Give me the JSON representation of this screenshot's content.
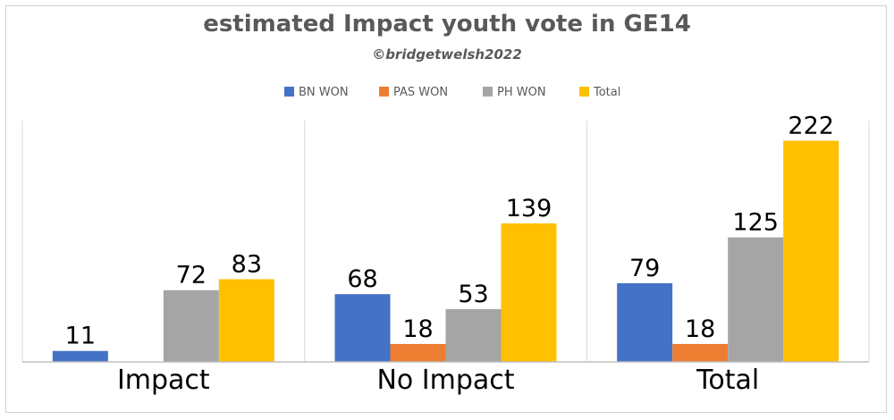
{
  "chart_data": {
    "type": "bar",
    "title": "estimated Impact youth vote in GE14",
    "subtitle": "©bridgetwelsh2022",
    "categories": [
      "Impact",
      "No Impact",
      "Total"
    ],
    "series": [
      {
        "name": "BN WON",
        "values": [
          11,
          68,
          79
        ],
        "color": "#4472C4"
      },
      {
        "name": "PAS WON",
        "values": [
          null,
          18,
          18
        ],
        "color": "#ED7D31"
      },
      {
        "name": "PH WON",
        "values": [
          72,
          53,
          125
        ],
        "color": "#A5A5A5"
      },
      {
        "name": "Total",
        "values": [
          83,
          139,
          222
        ],
        "color": "#FFC000"
      }
    ],
    "ylim": [
      0,
      240
    ],
    "grid": false,
    "legend_position": "top"
  }
}
